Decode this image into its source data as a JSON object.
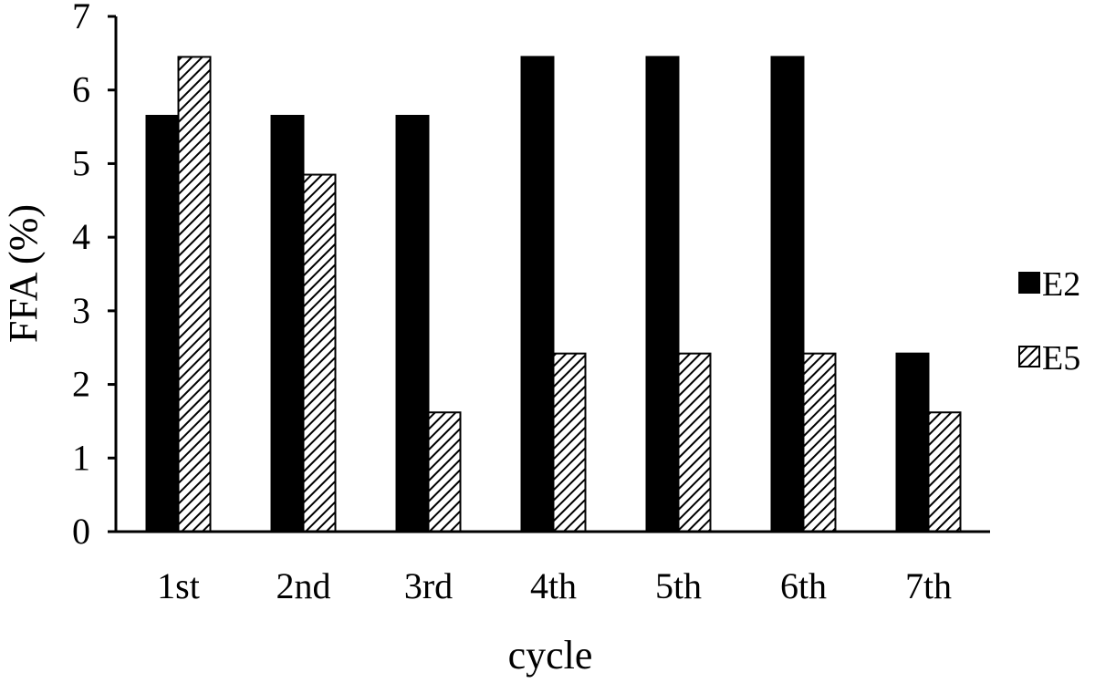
{
  "chart_data": {
    "type": "bar",
    "title": "",
    "xlabel": "cycle",
    "ylabel": "FFA (%)",
    "ylim": [
      0,
      7
    ],
    "yticks": [
      0,
      1,
      2,
      3,
      4,
      5,
      6,
      7
    ],
    "categories": [
      "1st",
      "2nd",
      "3rd",
      "4th",
      "5th",
      "6th",
      "7th"
    ],
    "series": [
      {
        "name": "E2",
        "fill": "solid",
        "values": [
          5.65,
          5.65,
          5.65,
          6.45,
          6.45,
          6.45,
          2.42
        ]
      },
      {
        "name": "E5",
        "fill": "hatched",
        "values": [
          6.45,
          4.85,
          1.62,
          2.42,
          2.42,
          2.42,
          1.62
        ]
      }
    ],
    "legend_position": "right",
    "grid": false
  },
  "colors": {
    "bar_solid": "#000000",
    "hatch_line": "#000000",
    "hatch_bg": "#ffffff",
    "axis": "#000000"
  }
}
